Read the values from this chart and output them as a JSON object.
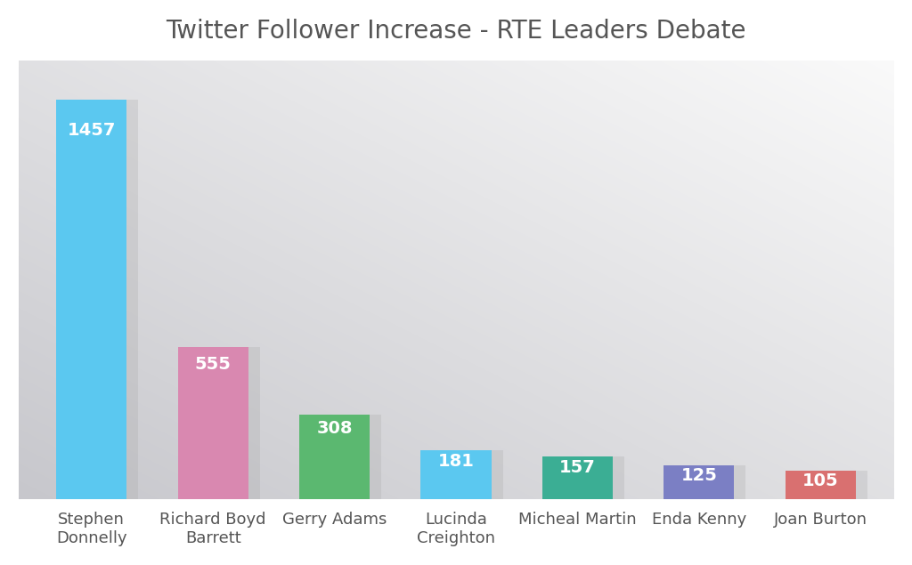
{
  "title": "Twitter Follower Increase - RTE Leaders Debate",
  "categories": [
    "Stephen\nDonnelly",
    "Richard Boyd\nBarrett",
    "Gerry Adams",
    "Lucinda\nCreighton",
    "Micheal Martin",
    "Enda Kenny",
    "Joan Burton"
  ],
  "values": [
    1457,
    555,
    308,
    181,
    157,
    125,
    105
  ],
  "bar_colors": [
    "#5BC8F0",
    "#D988B0",
    "#5BB870",
    "#5BC8F0",
    "#3BAE94",
    "#7B7FC4",
    "#D97070"
  ],
  "value_labels": [
    "1457",
    "555",
    "308",
    "181",
    "157",
    "125",
    "105"
  ],
  "title_fontsize": 20,
  "label_fontsize": 13,
  "value_fontsize": 14,
  "ylim": [
    0,
    1600
  ],
  "bg_light": "#f5f5f5",
  "bg_dark": "#cccccc",
  "title_color": "#555555"
}
